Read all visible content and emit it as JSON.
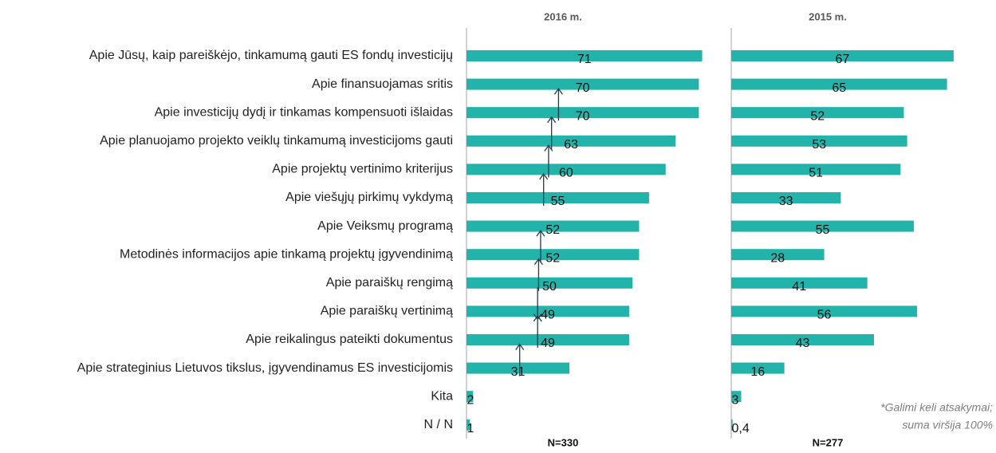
{
  "chart_data": [
    {
      "type": "bar",
      "orientation": "horizontal",
      "title": "2016 m.",
      "note": "N=330",
      "color": "#22b3aa",
      "categories": [
        "Apie Jūsų, kaip pareiškėjo, tinkamumą gauti ES fondų investicijų",
        "Apie finansuojamas sritis",
        "Apie investicijų dydį ir tinkamas kompensuoti išlaidas",
        "Apie planuojamo projekto veiklų tinkamumą investicijoms gauti",
        "Apie projektų vertinimo kriterijus",
        "Apie viešųjų pirkimų vykdymą",
        "Apie Veiksmų programą",
        "Metodinės informacijos apie tinkamą projektų įgyvendinimą",
        "Apie paraiškų rengimą",
        "Apie paraiškų vertinimą",
        "Apie reikalingus pateikti dokumentus",
        "Apie strateginius Lietuvos tikslus, įgyvendinamus ES investicijomis",
        "Kita",
        "N / N"
      ],
      "values": [
        71,
        70,
        70,
        63,
        60,
        55,
        52,
        52,
        50,
        49,
        49,
        31,
        2,
        1
      ],
      "xlim": [
        0,
        80
      ]
    },
    {
      "type": "bar",
      "orientation": "horizontal",
      "title": "2015 m.",
      "note": "N=277",
      "color": "#22b3aa",
      "values": [
        67,
        65,
        52,
        53,
        51,
        33,
        55,
        28,
        41,
        56,
        43,
        16,
        3,
        0.4
      ],
      "value_labels": [
        "67",
        "65",
        "52",
        "53",
        "51",
        "33",
        "55",
        "28",
        "41",
        "56",
        "43",
        "16",
        "3",
        "0,4"
      ],
      "xlim": [
        0,
        80
      ]
    }
  ],
  "footnote": [
    "*Galimi keli atsakymai;",
    "suma viršija 100%"
  ]
}
